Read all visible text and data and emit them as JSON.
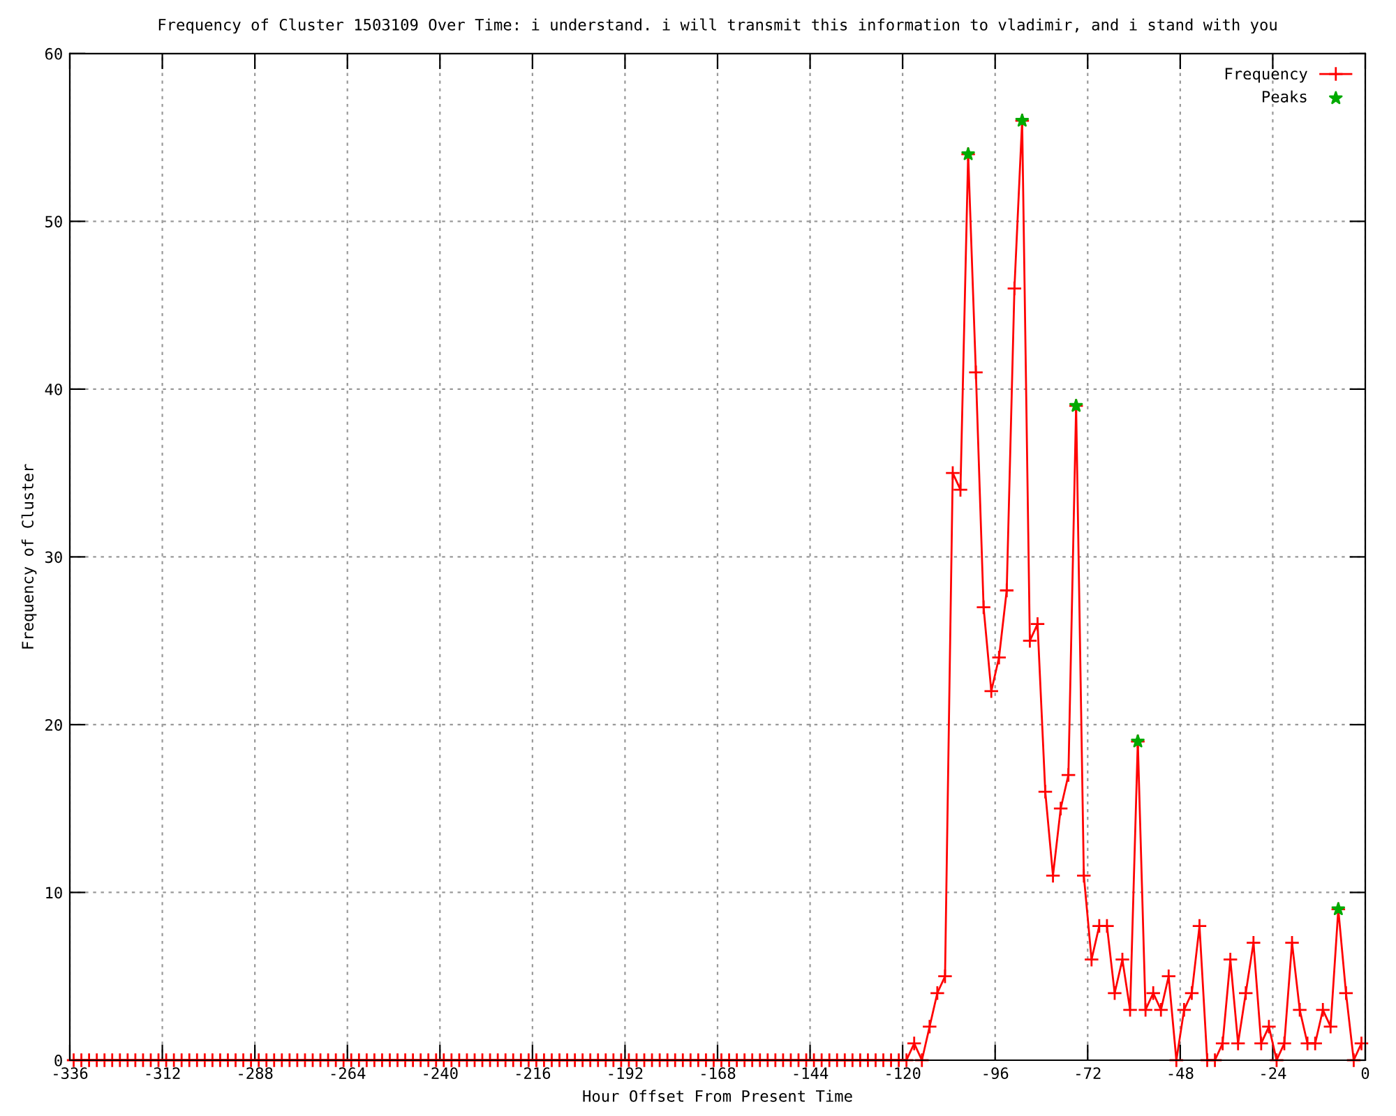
{
  "chart_data": {
    "type": "line",
    "title": "Frequency of Cluster 1503109 Over Time: i understand. i will transmit this information to vladimir, and i stand with you",
    "xlabel": "Hour Offset From Present Time",
    "ylabel": "Frequency of Cluster",
    "xlim": [
      -336,
      0
    ],
    "ylim": [
      0,
      60
    ],
    "xticks": [
      -336,
      -312,
      -288,
      -264,
      -240,
      -216,
      -192,
      -168,
      -144,
      -120,
      -96,
      -72,
      -48,
      -24,
      0
    ],
    "yticks": [
      0,
      10,
      20,
      30,
      40,
      50,
      60
    ],
    "grid": true,
    "legend": "top right",
    "series": [
      {
        "name": "Frequency",
        "color": "#ff0000",
        "marker": "cross",
        "x": [
          -335,
          -333,
          -331,
          -329,
          -327,
          -325,
          -323,
          -321,
          -319,
          -317,
          -315,
          -313,
          -311,
          -309,
          -307,
          -305,
          -303,
          -301,
          -299,
          -297,
          -295,
          -293,
          -291,
          -289,
          -287,
          -285,
          -283,
          -281,
          -279,
          -277,
          -275,
          -273,
          -271,
          -269,
          -267,
          -265,
          -263,
          -261,
          -259,
          -257,
          -255,
          -253,
          -251,
          -249,
          -247,
          -245,
          -243,
          -241,
          -239,
          -237,
          -235,
          -233,
          -231,
          -229,
          -227,
          -225,
          -223,
          -221,
          -219,
          -217,
          -215,
          -213,
          -211,
          -209,
          -207,
          -205,
          -203,
          -201,
          -199,
          -197,
          -195,
          -193,
          -191,
          -189,
          -187,
          -185,
          -183,
          -181,
          -179,
          -177,
          -175,
          -173,
          -171,
          -169,
          -167,
          -165,
          -163,
          -161,
          -159,
          -157,
          -155,
          -153,
          -151,
          -149,
          -147,
          -145,
          -143,
          -141,
          -139,
          -137,
          -135,
          -133,
          -131,
          -129,
          -127,
          -125,
          -123,
          -121,
          -119,
          -117,
          -115,
          -113,
          -111,
          -109,
          -107,
          -105,
          -103,
          -101,
          -99,
          -97,
          -95,
          -93,
          -91,
          -89,
          -87,
          -85,
          -83,
          -81,
          -79,
          -77,
          -75,
          -73,
          -71,
          -69,
          -67,
          -65,
          -63,
          -61,
          -59,
          -57,
          -55,
          -53,
          -51,
          -49,
          -47,
          -45,
          -43,
          -41,
          -39,
          -37,
          -35,
          -33,
          -31,
          -29,
          -27,
          -25,
          -23,
          -21,
          -19,
          -17,
          -15,
          -13,
          -11,
          -9,
          -7,
          -5,
          -3,
          -1
        ],
        "values": [
          0,
          0,
          0,
          0,
          0,
          0,
          0,
          0,
          0,
          0,
          0,
          0,
          0,
          0,
          0,
          0,
          0,
          0,
          0,
          0,
          0,
          0,
          0,
          0,
          0,
          0,
          0,
          0,
          0,
          0,
          0,
          0,
          0,
          0,
          0,
          0,
          0,
          0,
          0,
          0,
          0,
          0,
          0,
          0,
          0,
          0,
          0,
          0,
          0,
          0,
          0,
          0,
          0,
          0,
          0,
          0,
          0,
          0,
          0,
          0,
          0,
          0,
          0,
          0,
          0,
          0,
          0,
          0,
          0,
          0,
          0,
          0,
          0,
          0,
          0,
          0,
          0,
          0,
          0,
          0,
          0,
          0,
          0,
          0,
          0,
          0,
          0,
          0,
          0,
          0,
          0,
          0,
          0,
          0,
          0,
          0,
          0,
          0,
          0,
          0,
          0,
          0,
          0,
          0,
          0,
          0,
          0,
          0,
          0,
          1,
          0,
          2,
          4,
          5,
          35,
          34,
          54,
          41,
          27,
          22,
          24,
          28,
          46,
          56,
          25,
          26,
          16,
          11,
          15,
          17,
          39,
          11,
          6,
          8,
          8,
          4,
          6,
          3,
          19,
          3,
          4,
          3,
          5,
          0,
          3,
          4,
          8,
          0,
          0,
          1,
          6,
          1,
          4,
          7,
          1,
          2,
          0,
          1,
          7,
          3,
          1,
          1,
          3,
          2,
          9,
          4,
          0,
          1
        ]
      },
      {
        "name": "Peaks",
        "type": "scatter",
        "color": "#00aa00",
        "marker": "star",
        "x": [
          -103,
          -89,
          -75,
          -59,
          -7
        ],
        "values": [
          54,
          56,
          39,
          19,
          9
        ]
      }
    ]
  }
}
